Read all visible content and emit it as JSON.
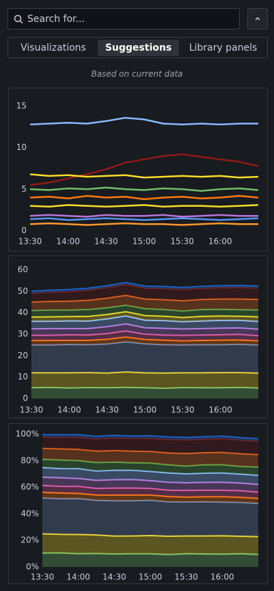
{
  "search": {
    "placeholder": "Search for..."
  },
  "tabs": [
    "Visualizations",
    "Suggestions",
    "Library panels"
  ],
  "note": "Based on current data",
  "chart_data": [
    {
      "type": "line",
      "categories": [
        "13:30",
        null,
        "14:00",
        null,
        "14:30",
        null,
        "15:00",
        null,
        "15:30",
        null,
        "16:00",
        null,
        null
      ],
      "ylim": [
        0,
        15
      ],
      "yticks": [
        0,
        5,
        10,
        15
      ],
      "series": [
        {
          "color": "#8ab8ff",
          "values": [
            12.8,
            12.9,
            13.0,
            12.9,
            13.2,
            13.6,
            13.4,
            12.9,
            12.8,
            12.9,
            12.8,
            12.9,
            12.9
          ]
        },
        {
          "color": "#8f1a1a",
          "values": [
            5.5,
            5.8,
            6.3,
            6.8,
            7.4,
            8.2,
            8.6,
            9.0,
            9.2,
            8.9,
            8.6,
            8.3,
            7.8
          ]
        },
        {
          "color": "#fade2a",
          "values": [
            6.8,
            6.6,
            6.7,
            6.5,
            6.6,
            6.7,
            6.4,
            6.5,
            6.6,
            6.5,
            6.6,
            6.4,
            6.5
          ]
        },
        {
          "color": "#73bf69",
          "values": [
            5.0,
            4.9,
            5.1,
            5.0,
            5.2,
            5.0,
            4.9,
            5.1,
            5.0,
            4.8,
            5.0,
            5.1,
            4.9
          ]
        },
        {
          "color": "#ff780a",
          "values": [
            4.0,
            4.1,
            3.9,
            4.2,
            4.0,
            4.1,
            3.8,
            4.0,
            4.1,
            3.9,
            4.0,
            4.2,
            4.0
          ]
        },
        {
          "color": "#fade2a",
          "values": [
            3.0,
            2.9,
            3.1,
            3.0,
            2.9,
            3.0,
            3.1,
            2.9,
            3.0,
            3.0,
            2.9,
            3.0,
            3.1
          ]
        },
        {
          "color": "#b877d9",
          "values": [
            1.8,
            1.9,
            1.8,
            1.7,
            1.9,
            1.8,
            1.8,
            1.9,
            1.7,
            1.8,
            1.9,
            1.8,
            1.8
          ]
        },
        {
          "color": "#5794f2",
          "values": [
            1.4,
            1.5,
            1.3,
            1.4,
            1.5,
            1.4,
            1.3,
            1.4,
            1.5,
            1.4,
            1.3,
            1.4,
            1.5
          ]
        },
        {
          "color": "#ff9830",
          "values": [
            0.8,
            0.9,
            0.8,
            0.7,
            0.8,
            0.9,
            0.8,
            0.8,
            0.7,
            0.8,
            0.9,
            0.8,
            0.8
          ]
        }
      ]
    },
    {
      "type": "area",
      "stacked": true,
      "categories": [
        "13:30",
        null,
        "14:00",
        null,
        "14:30",
        null,
        "15:00",
        null,
        "15:30",
        null,
        "16:00",
        null,
        null
      ],
      "ylim": [
        0,
        60
      ],
      "yticks": [
        0,
        10,
        20,
        30,
        40,
        50,
        60
      ],
      "series": [
        {
          "color": "#73bf69",
          "values": [
            5,
            5.2,
            4.9,
            5.1,
            5,
            5.2,
            5,
            4.8,
            5.1,
            5,
            5,
            5.2,
            4.9
          ]
        },
        {
          "color": "#fade2a",
          "values": [
            7,
            6.8,
            7.1,
            7,
            6.9,
            7.2,
            7,
            7.1,
            6.9,
            7,
            7.1,
            6.9,
            7
          ]
        },
        {
          "color": "#6f87b5",
          "values": [
            13,
            13,
            13.2,
            13,
            13.5,
            14,
            13.5,
            13.2,
            13,
            13.1,
            13,
            13.2,
            13
          ]
        },
        {
          "color": "#ff780a",
          "values": [
            2,
            2.1,
            1.9,
            2,
            2.2,
            2.3,
            2,
            2.1,
            1.9,
            2,
            2.1,
            2,
            2
          ]
        },
        {
          "color": "#e05aa0",
          "values": [
            2.5,
            2.4,
            2.6,
            2.5,
            2.7,
            2.8,
            2.5,
            2.4,
            2.6,
            2.5,
            2.5,
            2.6,
            2.4
          ]
        },
        {
          "color": "#b877d9",
          "values": [
            3,
            3.1,
            2.9,
            3,
            3.2,
            3.3,
            3,
            3.1,
            2.9,
            3,
            3.1,
            3,
            3
          ]
        },
        {
          "color": "#8ab8ff",
          "values": [
            3.5,
            3.4,
            3.6,
            3.5,
            3.6,
            3.7,
            3.5,
            3.6,
            3.4,
            3.5,
            3.6,
            3.5,
            3.6
          ]
        },
        {
          "color": "#fade2a",
          "values": [
            2,
            2.1,
            2,
            2.2,
            2.1,
            2,
            2.2,
            2.1,
            2,
            2.2,
            2.1,
            2,
            2.2
          ]
        },
        {
          "color": "#56a64b",
          "values": [
            3,
            3.1,
            3,
            3.2,
            3.1,
            3,
            3.2,
            3.1,
            3,
            3.2,
            3.1,
            3,
            3.2
          ]
        },
        {
          "color": "#e8691f",
          "values": [
            4,
            4.1,
            4.2,
            4.3,
            4.5,
            4.6,
            4.5,
            4.6,
            4.8,
            4.7,
            4.8,
            5,
            4.9
          ]
        },
        {
          "color": "#6b1c1c",
          "values": [
            4,
            4.2,
            4.4,
            4.6,
            4.8,
            5,
            5,
            5.1,
            5.2,
            5.1,
            5.2,
            5.3,
            5.2
          ]
        },
        {
          "color": "#1f60c4",
          "values": [
            1,
            1,
            1,
            1,
            1,
            1,
            1,
            1,
            1,
            1,
            1,
            1,
            1
          ]
        }
      ]
    },
    {
      "type": "area",
      "stacked": true,
      "categories": [
        "13:30",
        null,
        "14:00",
        null,
        "14:30",
        null,
        "15:00",
        null,
        "15:30",
        null,
        "16:00",
        null,
        null
      ],
      "ylim": [
        0,
        100
      ],
      "yticks": [
        {
          "value": 0,
          "label": "0%"
        },
        {
          "value": 20,
          "label": "20%"
        },
        {
          "value": 40,
          "label": "40%"
        },
        {
          "value": 60,
          "label": "60%"
        },
        {
          "value": 80,
          "label": "80%"
        },
        {
          "value": 100,
          "label": "100%"
        }
      ],
      "series": [
        {
          "color": "#73bf69",
          "values": [
            10.5,
            10.6,
            10,
            10.2,
            9.8,
            9.9,
            9.9,
            9.4,
            10,
            9.8,
            9.7,
            10,
            9.4
          ]
        },
        {
          "color": "#fade2a",
          "values": [
            14.5,
            14,
            14.5,
            14,
            13.5,
            13.5,
            13.8,
            13.8,
            13.4,
            13.6,
            13.8,
            13.2,
            13.5
          ]
        },
        {
          "color": "#6f87b5",
          "values": [
            27,
            26.8,
            27,
            26,
            26.5,
            26.5,
            26.5,
            25.8,
            25.5,
            25.6,
            25.3,
            25.4,
            25
          ]
        },
        {
          "color": "#ff780a",
          "values": [
            4.2,
            4.3,
            3.9,
            4,
            4.3,
            4.3,
            4,
            4.1,
            3.7,
            3.9,
            4.1,
            3.8,
            3.8
          ]
        },
        {
          "color": "#e05aa0",
          "values": [
            5.2,
            5,
            5.3,
            5,
            5.3,
            5.3,
            4.9,
            4.7,
            5.1,
            4.9,
            4.9,
            5,
            4.6
          ]
        },
        {
          "color": "#b877d9",
          "values": [
            6.2,
            6.4,
            5.9,
            6,
            6.3,
            6.3,
            5.9,
            6,
            5.7,
            5.9,
            6,
            5.8,
            5.8
          ]
        },
        {
          "color": "#8ab8ff",
          "values": [
            7.3,
            7,
            7.4,
            7,
            7.1,
            7,
            6.9,
            7,
            6.7,
            6.9,
            7,
            6.7,
            6.9
          ]
        },
        {
          "color": "#56a64b",
          "values": [
            6.2,
            6.4,
            6.1,
            6.4,
            6.1,
            5.7,
            6.3,
            6.1,
            5.9,
            6.3,
            6.1,
            5.8,
            6.2
          ]
        },
        {
          "color": "#e8691f",
          "values": [
            8.3,
            8.4,
            8.5,
            8.6,
            8.8,
            8.7,
            8.8,
            9,
            9.4,
            9.2,
            9.4,
            9.6,
            9.4
          ]
        },
        {
          "color": "#6b1c1c",
          "values": [
            8.3,
            8.7,
            9,
            9.2,
            9.4,
            9.5,
            9.8,
            10,
            10.2,
            10,
            10.2,
            10.2,
            10
          ]
        },
        {
          "color": "#1f60c4",
          "values": [
            2,
            2,
            2,
            2,
            2,
            1.9,
            2,
            2,
            2,
            2,
            2,
            1.9,
            1.9
          ]
        }
      ]
    }
  ]
}
